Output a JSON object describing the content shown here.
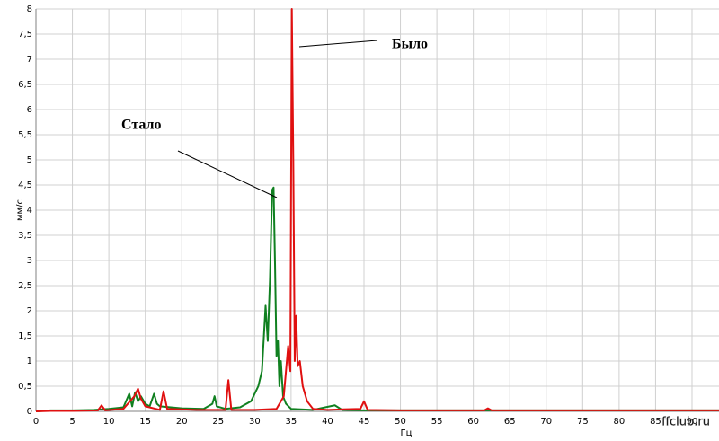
{
  "chart_data": {
    "type": "line",
    "xlabel": "Гц",
    "ylabel": "мм/с",
    "watermark": "ffclub.ru",
    "xlim": [
      0,
      93.7
    ],
    "ylim": [
      0,
      8
    ],
    "xticks": [
      0,
      5,
      10,
      15,
      20,
      25,
      30,
      35,
      40,
      45,
      50,
      55,
      60,
      65,
      70,
      75,
      80,
      85,
      90
    ],
    "yticks": [
      0,
      {
        "value": 0.5,
        "label": "0,5"
      },
      1,
      {
        "value": 1.5,
        "label": "1,5"
      },
      2,
      {
        "value": 2.5,
        "label": "2,5"
      },
      3,
      {
        "value": 3.5,
        "label": "3,5"
      },
      4,
      {
        "value": 4.5,
        "label": "4,5"
      },
      5,
      {
        "value": 5.5,
        "label": "5,5"
      },
      6,
      {
        "value": 6.5,
        "label": "6,5"
      },
      7,
      {
        "value": 7.5,
        "label": "7,5"
      },
      8
    ],
    "grid": true,
    "series": [
      {
        "name": "Было",
        "color": "#e01010",
        "x": [
          0,
          2,
          5,
          8.5,
          9,
          9.5,
          12,
          13.5,
          14,
          14.4,
          15,
          17,
          17.5,
          18,
          22,
          26,
          26.4,
          26.8,
          30,
          33,
          34,
          34.6,
          34.9,
          35.1,
          35.3,
          35.5,
          35.7,
          35.9,
          36.2,
          36.6,
          37.2,
          38,
          40,
          44.5,
          45,
          45.5,
          50,
          61.5,
          62,
          62.5,
          70,
          80,
          93.7
        ],
        "values": [
          0,
          0.01,
          0.01,
          0.02,
          0.12,
          0.02,
          0.05,
          0.3,
          0.45,
          0.25,
          0.1,
          0.03,
          0.4,
          0.05,
          0.03,
          0.03,
          0.62,
          0.03,
          0.03,
          0.05,
          0.3,
          1.3,
          0.8,
          8,
          5,
          1.0,
          1.9,
          0.9,
          1.0,
          0.5,
          0.2,
          0.05,
          0.03,
          0.05,
          0.2,
          0.03,
          0.02,
          0.02,
          0.06,
          0.02,
          0.02,
          0.02,
          0.02
        ]
      },
      {
        "name": "Стало",
        "color": "#108020",
        "x": [
          0,
          2,
          5,
          8,
          10,
          12,
          12.8,
          13.2,
          13.6,
          14,
          14.4,
          15,
          15.6,
          16.2,
          16.6,
          17,
          20,
          23,
          24.2,
          24.5,
          24.8,
          26,
          28,
          29.5,
          30.5,
          31,
          31.5,
          31.8,
          32.1,
          32.4,
          32.6,
          32.8,
          33,
          33.2,
          33.4,
          33.6,
          33.9,
          34.3,
          35,
          38,
          41,
          42,
          45,
          50,
          60,
          70,
          80,
          93.7
        ],
        "values": [
          0,
          0.02,
          0.02,
          0.03,
          0.05,
          0.08,
          0.35,
          0.1,
          0.38,
          0.2,
          0.3,
          0.15,
          0.1,
          0.35,
          0.15,
          0.1,
          0.06,
          0.05,
          0.15,
          0.3,
          0.1,
          0.05,
          0.08,
          0.2,
          0.5,
          0.8,
          2.1,
          1.4,
          2.6,
          4.4,
          4.45,
          2.9,
          1.1,
          1.4,
          0.5,
          1.0,
          0.3,
          0.15,
          0.05,
          0.03,
          0.12,
          0.03,
          0.02,
          0.02,
          0.02,
          0.02,
          0.02,
          0.02
        ]
      }
    ]
  }
}
